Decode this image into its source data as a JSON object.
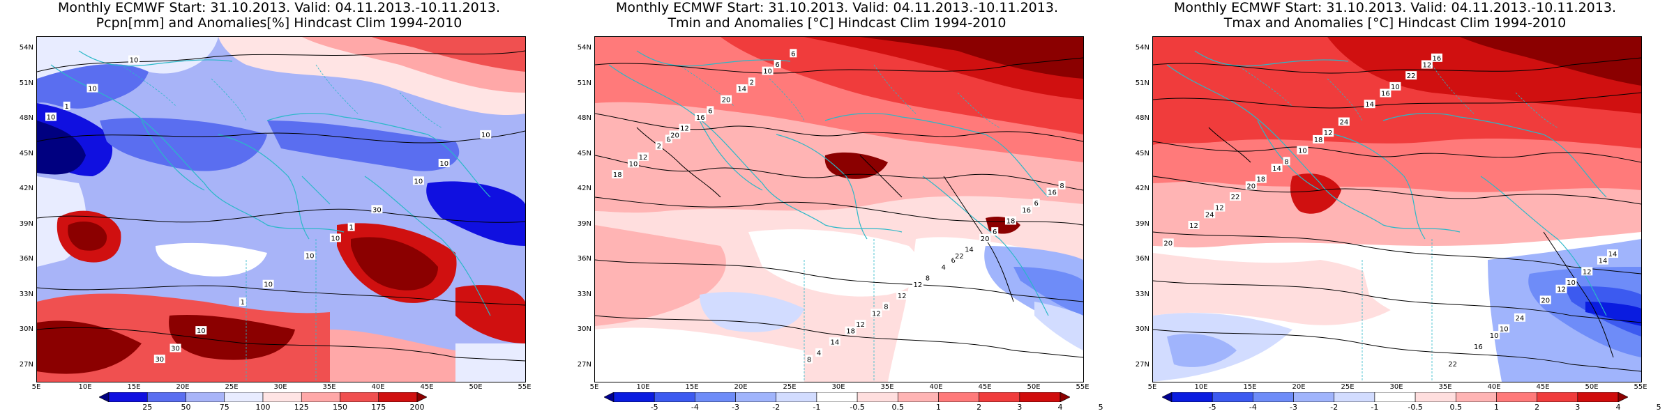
{
  "panels": [
    {
      "id": "pcpn",
      "title_line1": "Monthly ECMWF Start: 31.10.2013. Valid: 04.11.2013.-10.11.2013.",
      "title_line2": "Pcpn[mm] and Anomalies[%] Hindcast Clim 1994-2010",
      "colorbar_labels": [
        "25",
        "50",
        "75",
        "100",
        "125",
        "150",
        "175",
        "200"
      ],
      "colorbar_colors": [
        "#000080",
        "#1010e0",
        "#5a6ef0",
        "#a8b4f8",
        "#e8ecff",
        "#ffe4e4",
        "#ffa8a8",
        "#f05050",
        "#d01010",
        "#8b0000"
      ],
      "contour_labels": [
        "10",
        "10",
        "30",
        "10",
        "10",
        "10",
        "30",
        "10",
        "10",
        "10",
        "10",
        "10",
        "1",
        "1",
        "1",
        "30"
      ]
    },
    {
      "id": "tmin",
      "title_line1": "Monthly ECMWF Start: 31.10.2013. Valid: 04.11.2013.-10.11.2013.",
      "title_line2": "Tmin and Anomalies [°C] Hindcast Clim 1994-2010",
      "colorbar_labels": [
        "-5",
        "-4",
        "-3",
        "-2",
        "-1",
        "-0.5",
        "0.5",
        "1",
        "2",
        "3",
        "4",
        "5"
      ],
      "colorbar_colors": [
        "#000090",
        "#0a1ce0",
        "#3c5af0",
        "#6e8cf8",
        "#a0b4fc",
        "#d2dcff",
        "#ffffff",
        "#ffdede",
        "#ffb4b4",
        "#ff7a7a",
        "#f03c3c",
        "#d00c0c",
        "#8b0000"
      ],
      "contour_labels": [
        "8",
        "6",
        "6",
        "8",
        "8",
        "6",
        "6",
        "4",
        "12",
        "8",
        "2",
        "6",
        "12",
        "12",
        "14",
        "6",
        "18",
        "12",
        "20",
        "18",
        "14",
        "2",
        "4",
        "10",
        "16",
        "12",
        "16",
        "20",
        "8",
        "10",
        "12",
        "14",
        "16",
        "18",
        "20",
        "22"
      ]
    },
    {
      "id": "tmax",
      "title_line1": "Monthly ECMWF Start: 31.10.2013. Valid: 04.11.2013.-10.11.2013.",
      "title_line2": "Tmax and Anomalies [°C] Hindcast Clim 1994-2010",
      "colorbar_labels": [
        "-5",
        "-4",
        "-3",
        "-2",
        "-1",
        "-0.5",
        "0.5",
        "1",
        "2",
        "3",
        "4",
        "5"
      ],
      "colorbar_colors": [
        "#000090",
        "#0a1ce0",
        "#3c5af0",
        "#6e8cf8",
        "#a0b4fc",
        "#d2dcff",
        "#ffffff",
        "#ffdede",
        "#ffb4b4",
        "#ff7a7a",
        "#f03c3c",
        "#d00c0c",
        "#8b0000"
      ],
      "contour_labels": [
        "8",
        "10",
        "10",
        "12",
        "10",
        "12",
        "14",
        "16",
        "18",
        "20",
        "14",
        "12",
        "16",
        "10",
        "12",
        "22",
        "22",
        "24",
        "24",
        "20",
        "22",
        "14",
        "12",
        "16",
        "24",
        "10",
        "18",
        "14",
        "12",
        "20"
      ]
    }
  ],
  "lat_ticks": [
    "54N",
    "51N",
    "48N",
    "45N",
    "42N",
    "39N",
    "36N",
    "33N",
    "30N",
    "27N"
  ],
  "lon_ticks": [
    "5E",
    "10E",
    "15E",
    "20E",
    "25E",
    "30E",
    "35E",
    "40E",
    "45E",
    "50E",
    "55E"
  ]
}
